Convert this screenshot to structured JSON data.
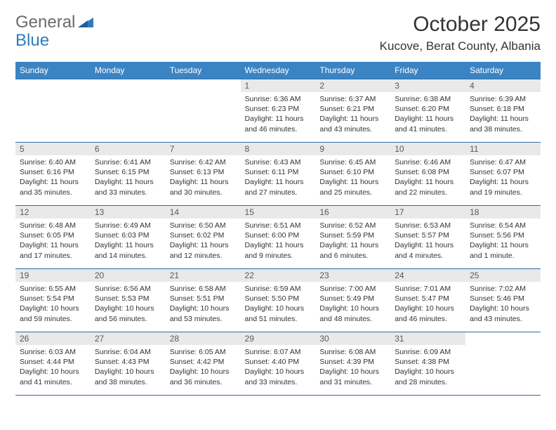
{
  "logo": {
    "general": "General",
    "blue": "Blue"
  },
  "title": "October 2025",
  "location": "Kucove, Berat County, Albania",
  "colors": {
    "header_bg": "#3b84c4",
    "header_text": "#ffffff",
    "border": "#2e6da4",
    "daynum_bg": "#e9e9e9",
    "daynum_text": "#5a5a5a",
    "body_text": "#333333",
    "logo_gray": "#6b6b6b",
    "logo_blue": "#2f7bbf"
  },
  "weekdays": [
    "Sunday",
    "Monday",
    "Tuesday",
    "Wednesday",
    "Thursday",
    "Friday",
    "Saturday"
  ],
  "weeks": [
    [
      {
        "day": "",
        "sunrise": "",
        "sunset": "",
        "daylight": ""
      },
      {
        "day": "",
        "sunrise": "",
        "sunset": "",
        "daylight": ""
      },
      {
        "day": "",
        "sunrise": "",
        "sunset": "",
        "daylight": ""
      },
      {
        "day": "1",
        "sunrise": "Sunrise: 6:36 AM",
        "sunset": "Sunset: 6:23 PM",
        "daylight": "Daylight: 11 hours and 46 minutes."
      },
      {
        "day": "2",
        "sunrise": "Sunrise: 6:37 AM",
        "sunset": "Sunset: 6:21 PM",
        "daylight": "Daylight: 11 hours and 43 minutes."
      },
      {
        "day": "3",
        "sunrise": "Sunrise: 6:38 AM",
        "sunset": "Sunset: 6:20 PM",
        "daylight": "Daylight: 11 hours and 41 minutes."
      },
      {
        "day": "4",
        "sunrise": "Sunrise: 6:39 AM",
        "sunset": "Sunset: 6:18 PM",
        "daylight": "Daylight: 11 hours and 38 minutes."
      }
    ],
    [
      {
        "day": "5",
        "sunrise": "Sunrise: 6:40 AM",
        "sunset": "Sunset: 6:16 PM",
        "daylight": "Daylight: 11 hours and 35 minutes."
      },
      {
        "day": "6",
        "sunrise": "Sunrise: 6:41 AM",
        "sunset": "Sunset: 6:15 PM",
        "daylight": "Daylight: 11 hours and 33 minutes."
      },
      {
        "day": "7",
        "sunrise": "Sunrise: 6:42 AM",
        "sunset": "Sunset: 6:13 PM",
        "daylight": "Daylight: 11 hours and 30 minutes."
      },
      {
        "day": "8",
        "sunrise": "Sunrise: 6:43 AM",
        "sunset": "Sunset: 6:11 PM",
        "daylight": "Daylight: 11 hours and 27 minutes."
      },
      {
        "day": "9",
        "sunrise": "Sunrise: 6:45 AM",
        "sunset": "Sunset: 6:10 PM",
        "daylight": "Daylight: 11 hours and 25 minutes."
      },
      {
        "day": "10",
        "sunrise": "Sunrise: 6:46 AM",
        "sunset": "Sunset: 6:08 PM",
        "daylight": "Daylight: 11 hours and 22 minutes."
      },
      {
        "day": "11",
        "sunrise": "Sunrise: 6:47 AM",
        "sunset": "Sunset: 6:07 PM",
        "daylight": "Daylight: 11 hours and 19 minutes."
      }
    ],
    [
      {
        "day": "12",
        "sunrise": "Sunrise: 6:48 AM",
        "sunset": "Sunset: 6:05 PM",
        "daylight": "Daylight: 11 hours and 17 minutes."
      },
      {
        "day": "13",
        "sunrise": "Sunrise: 6:49 AM",
        "sunset": "Sunset: 6:03 PM",
        "daylight": "Daylight: 11 hours and 14 minutes."
      },
      {
        "day": "14",
        "sunrise": "Sunrise: 6:50 AM",
        "sunset": "Sunset: 6:02 PM",
        "daylight": "Daylight: 11 hours and 12 minutes."
      },
      {
        "day": "15",
        "sunrise": "Sunrise: 6:51 AM",
        "sunset": "Sunset: 6:00 PM",
        "daylight": "Daylight: 11 hours and 9 minutes."
      },
      {
        "day": "16",
        "sunrise": "Sunrise: 6:52 AM",
        "sunset": "Sunset: 5:59 PM",
        "daylight": "Daylight: 11 hours and 6 minutes."
      },
      {
        "day": "17",
        "sunrise": "Sunrise: 6:53 AM",
        "sunset": "Sunset: 5:57 PM",
        "daylight": "Daylight: 11 hours and 4 minutes."
      },
      {
        "day": "18",
        "sunrise": "Sunrise: 6:54 AM",
        "sunset": "Sunset: 5:56 PM",
        "daylight": "Daylight: 11 hours and 1 minute."
      }
    ],
    [
      {
        "day": "19",
        "sunrise": "Sunrise: 6:55 AM",
        "sunset": "Sunset: 5:54 PM",
        "daylight": "Daylight: 10 hours and 59 minutes."
      },
      {
        "day": "20",
        "sunrise": "Sunrise: 6:56 AM",
        "sunset": "Sunset: 5:53 PM",
        "daylight": "Daylight: 10 hours and 56 minutes."
      },
      {
        "day": "21",
        "sunrise": "Sunrise: 6:58 AM",
        "sunset": "Sunset: 5:51 PM",
        "daylight": "Daylight: 10 hours and 53 minutes."
      },
      {
        "day": "22",
        "sunrise": "Sunrise: 6:59 AM",
        "sunset": "Sunset: 5:50 PM",
        "daylight": "Daylight: 10 hours and 51 minutes."
      },
      {
        "day": "23",
        "sunrise": "Sunrise: 7:00 AM",
        "sunset": "Sunset: 5:49 PM",
        "daylight": "Daylight: 10 hours and 48 minutes."
      },
      {
        "day": "24",
        "sunrise": "Sunrise: 7:01 AM",
        "sunset": "Sunset: 5:47 PM",
        "daylight": "Daylight: 10 hours and 46 minutes."
      },
      {
        "day": "25",
        "sunrise": "Sunrise: 7:02 AM",
        "sunset": "Sunset: 5:46 PM",
        "daylight": "Daylight: 10 hours and 43 minutes."
      }
    ],
    [
      {
        "day": "26",
        "sunrise": "Sunrise: 6:03 AM",
        "sunset": "Sunset: 4:44 PM",
        "daylight": "Daylight: 10 hours and 41 minutes."
      },
      {
        "day": "27",
        "sunrise": "Sunrise: 6:04 AM",
        "sunset": "Sunset: 4:43 PM",
        "daylight": "Daylight: 10 hours and 38 minutes."
      },
      {
        "day": "28",
        "sunrise": "Sunrise: 6:05 AM",
        "sunset": "Sunset: 4:42 PM",
        "daylight": "Daylight: 10 hours and 36 minutes."
      },
      {
        "day": "29",
        "sunrise": "Sunrise: 6:07 AM",
        "sunset": "Sunset: 4:40 PM",
        "daylight": "Daylight: 10 hours and 33 minutes."
      },
      {
        "day": "30",
        "sunrise": "Sunrise: 6:08 AM",
        "sunset": "Sunset: 4:39 PM",
        "daylight": "Daylight: 10 hours and 31 minutes."
      },
      {
        "day": "31",
        "sunrise": "Sunrise: 6:09 AM",
        "sunset": "Sunset: 4:38 PM",
        "daylight": "Daylight: 10 hours and 28 minutes."
      },
      {
        "day": "",
        "sunrise": "",
        "sunset": "",
        "daylight": ""
      }
    ]
  ]
}
